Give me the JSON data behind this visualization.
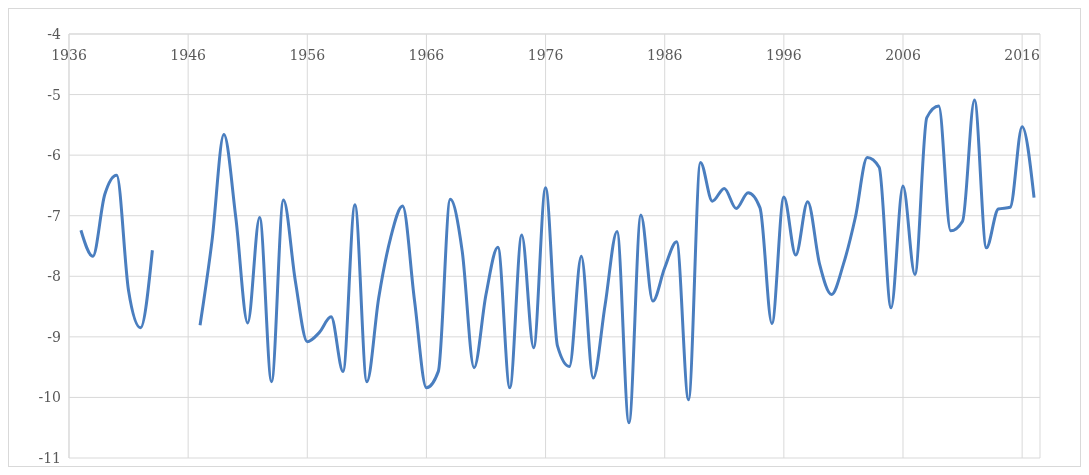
{
  "chart_data": {
    "type": "line",
    "x": [
      1937,
      1938,
      1939,
      1940,
      1941,
      1942,
      1943,
      1944,
      1945,
      1946,
      1947,
      1948,
      1949,
      1950,
      1951,
      1952,
      1953,
      1954,
      1955,
      1956,
      1957,
      1958,
      1959,
      1960,
      1961,
      1962,
      1963,
      1964,
      1965,
      1966,
      1967,
      1968,
      1969,
      1970,
      1971,
      1972,
      1973,
      1974,
      1975,
      1976,
      1977,
      1978,
      1979,
      1980,
      1981,
      1982,
      1983,
      1984,
      1985,
      1986,
      1987,
      1988,
      1989,
      1990,
      1991,
      1992,
      1993,
      1994,
      1995,
      1996,
      1997,
      1998,
      1999,
      2000,
      2001,
      2002,
      2003,
      2004,
      2005,
      2006,
      2007,
      2008,
      2009,
      2010,
      2011,
      2012,
      2013,
      2014,
      2015,
      2016,
      2017
    ],
    "series": [
      {
        "color": "#4a7ebf",
        "values": [
          -7.24,
          -7.67,
          -6.65,
          -6.33,
          -8.24,
          -8.85,
          -7.57,
          null,
          null,
          null,
          -8.81,
          -7.42,
          -5.66,
          -7.03,
          -8.77,
          -7.03,
          -9.74,
          -6.74,
          -8.08,
          -9.08,
          -8.93,
          -8.67,
          -9.57,
          -6.82,
          -9.74,
          -8.35,
          -7.36,
          -6.84,
          -8.4,
          -9.84,
          -9.57,
          -6.73,
          -7.58,
          -9.51,
          -8.3,
          -7.52,
          -9.84,
          -7.32,
          -9.18,
          -6.54,
          -9.15,
          -9.49,
          -7.67,
          -9.68,
          -8.47,
          -7.26,
          -10.42,
          -6.99,
          -8.41,
          -7.86,
          -7.43,
          -10.04,
          -6.12,
          -6.76,
          -6.55,
          -6.88,
          -6.62,
          -6.87,
          -8.78,
          -6.69,
          -7.65,
          -6.77,
          -7.8,
          -8.3,
          -7.8,
          -7.03,
          -6.04,
          -6.2,
          -8.52,
          -6.51,
          -7.97,
          -5.38,
          -5.19,
          -7.25,
          -7.09,
          -5.09,
          -7.53,
          -6.89,
          -6.86,
          -5.53,
          -6.7
        ]
      }
    ],
    "xlim": [
      1936,
      2017.5
    ],
    "xticks": [
      1936,
      1946,
      1956,
      1966,
      1976,
      1986,
      1996,
      2006,
      2016
    ],
    "ylim": [
      -11,
      -4
    ],
    "yticks": [
      -11,
      -10,
      -9,
      -8,
      -7,
      -6,
      -5,
      -4
    ],
    "grid": true,
    "marker": "none",
    "line_style": "solid"
  }
}
